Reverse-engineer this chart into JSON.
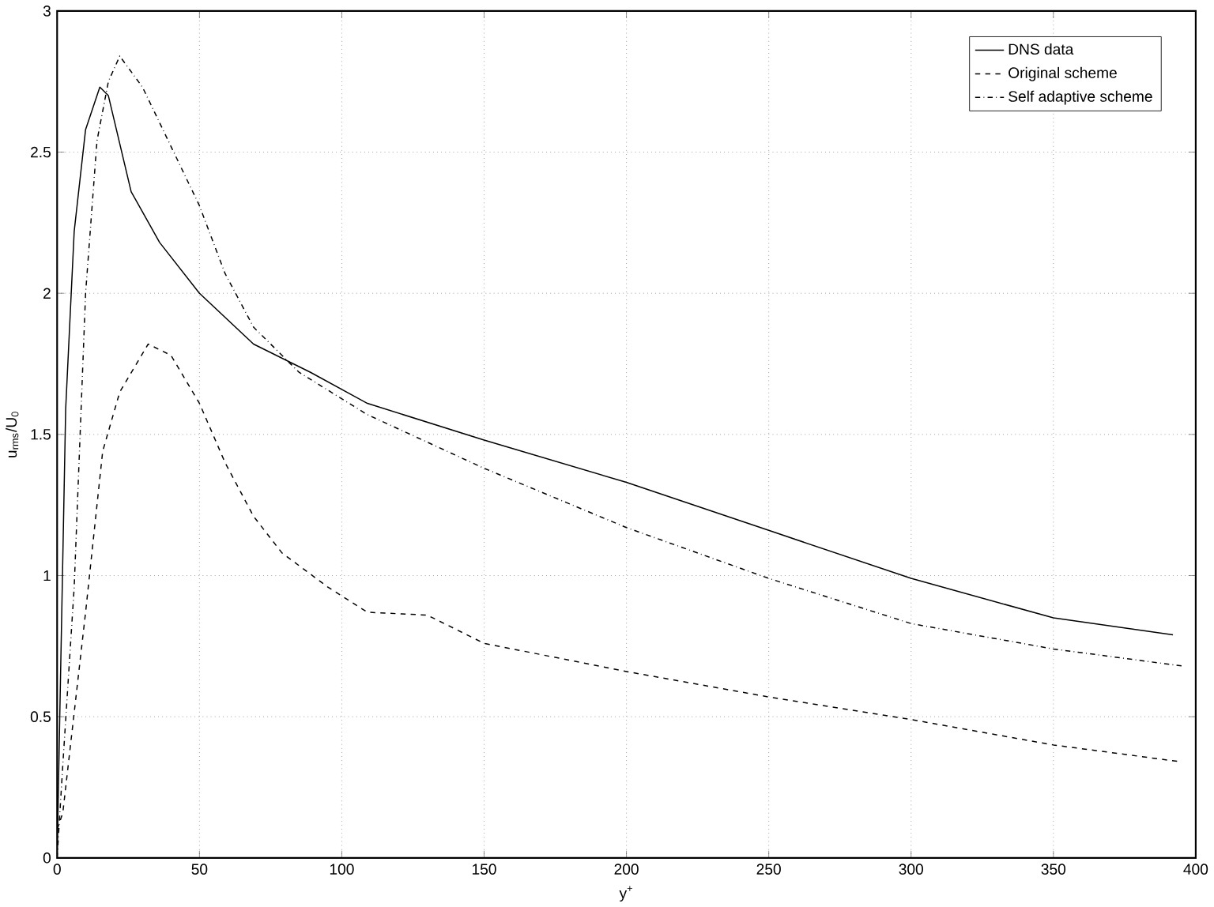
{
  "chart_data": {
    "type": "line",
    "xlabel": "y$^{+}$",
    "ylabel": "u$_{rms}$/U$_{0}$",
    "xlim": [
      0,
      400
    ],
    "ylim": [
      0,
      3
    ],
    "xticks": [
      0,
      50,
      100,
      150,
      200,
      250,
      300,
      350,
      400
    ],
    "yticks": [
      0,
      0.5,
      1,
      1.5,
      2,
      2.5,
      3
    ],
    "grid": true,
    "legend": "top right",
    "marker": "none",
    "series": [
      {
        "name": "DNS data",
        "color": "#000000",
        "line_style": "solid",
        "x": [
          0,
          1,
          3,
          6,
          10,
          15,
          18,
          26,
          36,
          50,
          69,
          89,
          109,
          150,
          200,
          250,
          300,
          350,
          392
        ],
        "values": [
          0,
          0.54,
          1.59,
          2.22,
          2.58,
          2.73,
          2.7,
          2.36,
          2.18,
          2.0,
          1.82,
          1.72,
          1.61,
          1.48,
          1.33,
          1.16,
          0.99,
          0.85,
          0.79
        ]
      },
      {
        "name": "Original scheme",
        "color": "#000000",
        "line_style": "dashed",
        "x": [
          0,
          2,
          10,
          16,
          22,
          32,
          40,
          50,
          59,
          69,
          79,
          95,
          109,
          130,
          150,
          200,
          250,
          300,
          350,
          395
        ],
        "values": [
          0.1,
          0.16,
          0.87,
          1.44,
          1.65,
          1.82,
          1.78,
          1.61,
          1.4,
          1.21,
          1.08,
          0.96,
          0.87,
          0.86,
          0.76,
          0.66,
          0.57,
          0.49,
          0.4,
          0.34
        ]
      },
      {
        "name": "Self adaptive scheme",
        "color": "#000000",
        "line_style": "dashdot",
        "x": [
          0,
          2,
          6,
          10,
          14,
          18,
          22,
          30,
          40,
          50,
          59,
          69,
          85,
          109,
          150,
          200,
          250,
          300,
          350,
          395
        ],
        "values": [
          0,
          0.33,
          0.96,
          2.0,
          2.54,
          2.75,
          2.84,
          2.73,
          2.52,
          2.31,
          2.07,
          1.88,
          1.72,
          1.57,
          1.38,
          1.17,
          0.99,
          0.83,
          0.74,
          0.68
        ]
      }
    ]
  }
}
